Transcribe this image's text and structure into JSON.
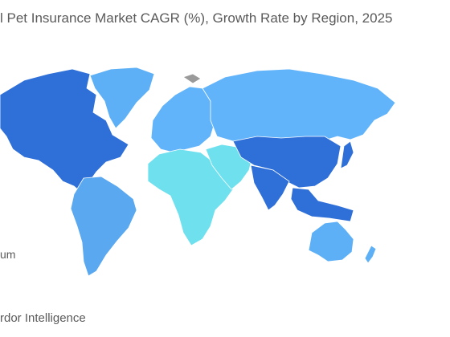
{
  "header": {
    "title": "l Pet Insurance Market CAGR (%), Growth Rate by Region, 2025"
  },
  "legend": {
    "items": [
      {
        "label": "um"
      }
    ]
  },
  "footer": {
    "source": "rdor Intelligence"
  }
}
